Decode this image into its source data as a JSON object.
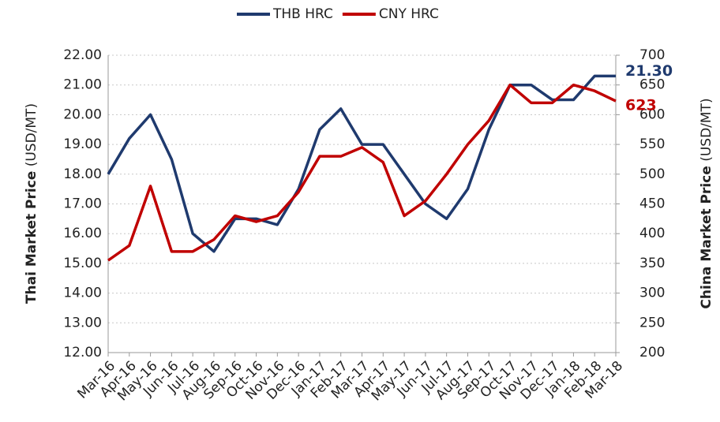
{
  "chart_data": {
    "type": "line",
    "ylabel": [
      "Thai Market Price",
      "(USD/MT)"
    ],
    "y2label": [
      "China Market Price",
      "(USD/MT)"
    ],
    "categories": [
      "Mar-16",
      "Apr-16",
      "May-16",
      "Jun-16",
      "Jul-16",
      "Aug-16",
      "Sep-16",
      "Oct-16",
      "Nov-16",
      "Dec-16",
      "Jan-17",
      "Feb-17",
      "Mar-17",
      "Apr-17",
      "May-17",
      "Jun-17",
      "Jul-17",
      "Aug-17",
      "Sep-17",
      "Oct-17",
      "Nov-17",
      "Dec-17",
      "Jan-18",
      "Feb-18",
      "Mar-18"
    ],
    "series": [
      {
        "name": "THB HRC",
        "color": "#1f3a6e",
        "axis": "y",
        "values": [
          18.0,
          19.2,
          20.0,
          18.5,
          16.0,
          15.4,
          16.5,
          16.5,
          16.3,
          17.5,
          19.5,
          20.2,
          19.0,
          19.0,
          18.0,
          17.0,
          16.5,
          17.5,
          19.5,
          21.0,
          21.0,
          20.5,
          20.5,
          21.3,
          21.3
        ],
        "value_labels": [
          null,
          null,
          null,
          null,
          null,
          null,
          null,
          null,
          null,
          null,
          null,
          null,
          null,
          null,
          null,
          null,
          null,
          null,
          null,
          null,
          null,
          null,
          null,
          null,
          "21.30"
        ]
      },
      {
        "name": "CNY HRC",
        "color": "#c00000",
        "axis": "y2",
        "values": [
          355,
          380,
          480,
          370,
          370,
          390,
          430,
          420,
          430,
          470,
          530,
          530,
          545,
          520,
          430,
          455,
          500,
          550,
          590,
          650,
          620,
          620,
          650,
          640,
          623
        ]
      }
    ],
    "ylim": [
      12,
      22
    ],
    "yticks": [
      {
        "value": 12,
        "label": "12.00"
      },
      {
        "value": 13,
        "label": "13.00"
      },
      {
        "value": 14,
        "label": "14.00"
      },
      {
        "value": 15,
        "label": "15.00"
      },
      {
        "value": 16,
        "label": "16.00"
      },
      {
        "value": 17,
        "label": "17.00"
      },
      {
        "value": 18,
        "label": "18.00"
      },
      {
        "value": 19,
        "label": "19.00"
      },
      {
        "value": 20,
        "label": "20.00"
      },
      {
        "value": 21,
        "label": "21.00"
      },
      {
        "value": 22,
        "label": "22.00"
      }
    ],
    "y2lim": [
      200,
      700
    ],
    "y2ticks": [
      200,
      250,
      300,
      350,
      400,
      450,
      500,
      550,
      600,
      650,
      700
    ],
    "grid": true,
    "legend": "top"
  }
}
